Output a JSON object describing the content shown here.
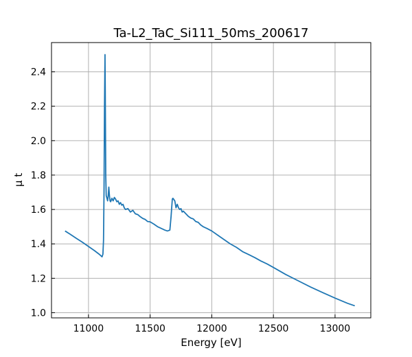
{
  "chart_data": {
    "type": "line",
    "title": "Ta-L2_TaC_Si111_50ms_200617",
    "xlabel": "Energy [eV]",
    "ylabel": "μ t",
    "xlim": [
      10700,
      13290
    ],
    "ylim": [
      0.97,
      2.57
    ],
    "xticks": [
      11000,
      11500,
      12000,
      12500,
      13000
    ],
    "yticks": [
      1.0,
      1.2,
      1.4,
      1.6,
      1.8,
      2.0,
      2.2,
      2.4
    ],
    "xtick_labels": [
      "11000",
      "11500",
      "12000",
      "12500",
      "13000"
    ],
    "ytick_labels": [
      "1.0",
      "1.2",
      "1.4",
      "1.6",
      "1.8",
      "2.0",
      "2.2",
      "2.4"
    ],
    "grid": true,
    "color": "#1f77b4",
    "series": [
      {
        "x": [
          10810,
          10850,
          10900,
          10950,
          11000,
          11050,
          11090,
          11110,
          11117,
          11122,
          11126,
          11130,
          11134,
          11136,
          11140,
          11144,
          11150,
          11155,
          11160,
          11165,
          11170,
          11175,
          11180,
          11190,
          11200,
          11210,
          11220,
          11230,
          11240,
          11250,
          11260,
          11270,
          11280,
          11290,
          11300,
          11320,
          11340,
          11360,
          11380,
          11400,
          11420,
          11440,
          11460,
          11480,
          11500,
          11530,
          11560,
          11590,
          11620,
          11640,
          11660,
          11670,
          11680,
          11685,
          11690,
          11700,
          11710,
          11720,
          11730,
          11740,
          11750,
          11760,
          11770,
          11790,
          11810,
          11830,
          11850,
          11870,
          11890,
          11910,
          11930,
          11960,
          12000,
          12050,
          12100,
          12150,
          12200,
          12250,
          12300,
          12350,
          12400,
          12450,
          12500,
          12600,
          12700,
          12800,
          12900,
          13000,
          13100,
          13160
        ],
        "y": [
          1.475,
          1.457,
          1.433,
          1.41,
          1.385,
          1.36,
          1.338,
          1.325,
          1.34,
          1.42,
          1.7,
          2.2,
          2.5,
          2.3,
          1.8,
          1.68,
          1.665,
          1.65,
          1.68,
          1.73,
          1.68,
          1.65,
          1.645,
          1.665,
          1.65,
          1.67,
          1.66,
          1.645,
          1.65,
          1.63,
          1.64,
          1.625,
          1.63,
          1.61,
          1.6,
          1.605,
          1.585,
          1.595,
          1.575,
          1.57,
          1.558,
          1.548,
          1.542,
          1.53,
          1.528,
          1.515,
          1.5,
          1.49,
          1.48,
          1.475,
          1.48,
          1.56,
          1.66,
          1.665,
          1.66,
          1.65,
          1.61,
          1.63,
          1.61,
          1.6,
          1.605,
          1.585,
          1.59,
          1.575,
          1.56,
          1.55,
          1.545,
          1.53,
          1.525,
          1.51,
          1.5,
          1.49,
          1.475,
          1.45,
          1.425,
          1.4,
          1.38,
          1.355,
          1.338,
          1.32,
          1.3,
          1.283,
          1.263,
          1.222,
          1.186,
          1.15,
          1.117,
          1.085,
          1.055,
          1.04
        ]
      }
    ]
  }
}
